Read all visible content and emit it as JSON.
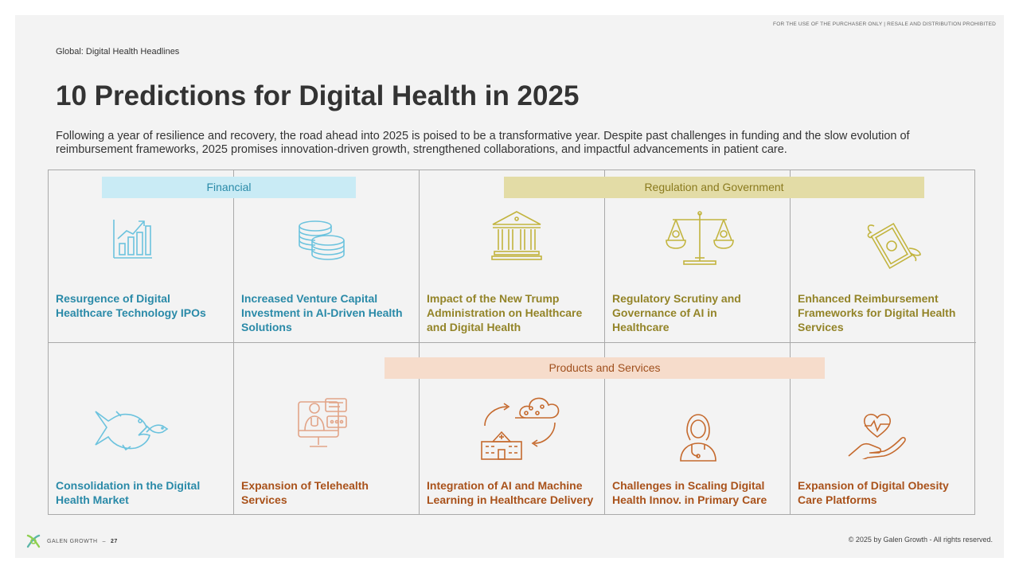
{
  "header": {
    "disclaimer": "FOR THE USE OF THE PURCHASER ONLY | RESALE AND DISTRIBUTION PROHIBITED",
    "breadcrumb": "Global: Digital Health Headlines",
    "title": "10 Predictions for Digital Health in 2025",
    "intro": "Following a year of resilience and recovery, the road ahead into 2025 is poised to be a transformative year. Despite past challenges in funding and the slow evolution of reimbursement frameworks, 2025 promises innovation-driven growth, strengthened collaborations, and impactful advancements in patient care."
  },
  "categories": {
    "financial": "Financial",
    "regulation": "Regulation and Government",
    "products": "Products and Services"
  },
  "predictions": [
    {
      "label": "Resurgence of Digital Healthcare Technology IPOs",
      "icon": "growth-chart-icon"
    },
    {
      "label": "Increased Venture Capital Investment in AI-Driven Health Solutions",
      "icon": "coins-icon"
    },
    {
      "label": "Impact of the New Trump Administration on Healthcare and Digital Health",
      "icon": "government-building-icon"
    },
    {
      "label": "Regulatory Scrutiny and Governance of AI in Healthcare",
      "icon": "scales-icon"
    },
    {
      "label": "Enhanced Reimbursement Frameworks for Digital Health Services",
      "icon": "flying-money-icon"
    },
    {
      "label": "Consolidation in the Digital Health Market",
      "icon": "big-fish-small-fish-icon"
    },
    {
      "label": "Expansion of Telehealth Services",
      "icon": "telehealth-doctor-icon"
    },
    {
      "label": "Integration of AI and Machine Learning in Healthcare Delivery",
      "icon": "cloud-hospital-icon"
    },
    {
      "label": "Challenges in Scaling Digital Health Innov. in Primary Care",
      "icon": "doctor-icon"
    },
    {
      "label": "Expansion of Digital Obesity Care Platforms",
      "icon": "heart-hand-icon"
    }
  ],
  "footer": {
    "brand": "GALEN GROWTH",
    "page_sep": "–",
    "page": "27",
    "copyright": "© 2025 by Galen Growth  - All rights reserved."
  },
  "colors": {
    "financial": "#2a8aa8",
    "regulation": "#938428",
    "products": "#a9521b"
  }
}
